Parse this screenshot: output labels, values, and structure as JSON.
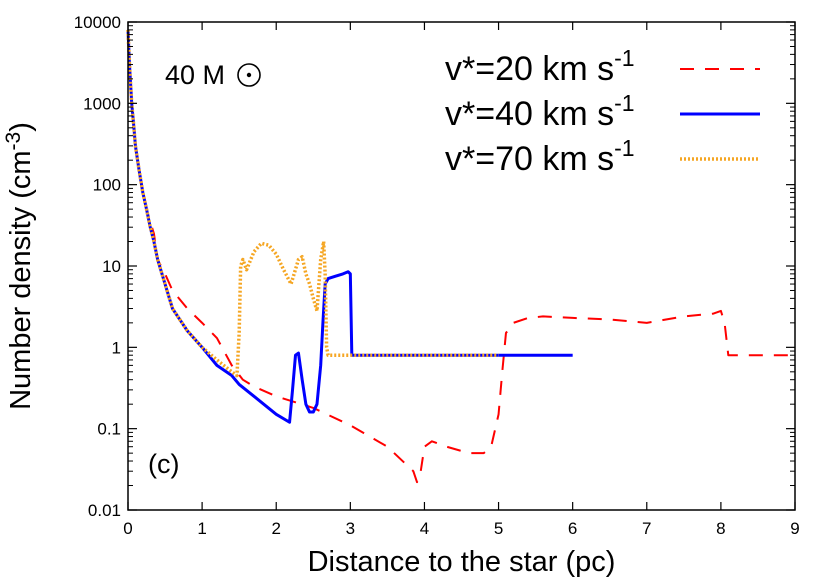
{
  "chart_data": {
    "type": "line",
    "xlabel": "Distance to the star (pc)",
    "ylabel": "Number density  (cm",
    "ylabel_sup": "-3",
    "ylabel_close": ")",
    "xlim": [
      0,
      9
    ],
    "ylim": [
      0.01,
      10000
    ],
    "yscale": "log",
    "x_ticks": [
      0,
      1,
      2,
      3,
      4,
      5,
      6,
      7,
      8,
      9
    ],
    "x_tick_labels": [
      "0",
      "1",
      "2",
      "3",
      "4",
      "5",
      "6",
      "7",
      "8",
      "9"
    ],
    "y_ticks": [
      0.01,
      0.1,
      1,
      10,
      100,
      1000,
      10000
    ],
    "y_tick_labels": [
      "0.01",
      "0.1",
      "1",
      "10",
      "100",
      "1000",
      "10000"
    ],
    "grid": false,
    "legend_position": "top-right",
    "annotations": {
      "mass_label": "40 M",
      "panel_label": "(c)"
    },
    "series": [
      {
        "name": "v*=20 km s",
        "name_sup": "-1",
        "color": "#ff0000",
        "style": "dashed",
        "x": [
          0.0,
          0.02,
          0.05,
          0.08,
          0.1,
          0.15,
          0.2,
          0.25,
          0.3,
          0.35,
          0.4,
          0.5,
          0.6,
          0.8,
          1.0,
          1.2,
          1.4,
          1.55,
          1.7,
          2.0,
          2.5,
          3.0,
          3.5,
          3.85,
          3.9,
          3.95,
          4.0,
          4.1,
          4.3,
          4.6,
          4.8,
          4.9,
          5.0,
          5.05,
          5.1,
          5.2,
          5.4,
          5.6,
          6.0,
          6.5,
          7.0,
          7.5,
          7.9,
          8.0,
          8.05,
          8.1,
          8.5,
          9.0
        ],
        "y": [
          8000,
          3000,
          1000,
          500,
          300,
          150,
          80,
          50,
          35,
          25,
          12,
          8,
          5,
          3,
          2,
          1.3,
          0.6,
          0.4,
          0.33,
          0.25,
          0.18,
          0.11,
          0.06,
          0.03,
          0.022,
          0.03,
          0.06,
          0.07,
          0.06,
          0.05,
          0.05,
          0.06,
          0.15,
          0.5,
          1.5,
          2.0,
          2.3,
          2.4,
          2.3,
          2.2,
          2.0,
          2.4,
          2.6,
          2.8,
          2.0,
          0.8,
          0.8,
          0.8
        ]
      },
      {
        "name": "v*=40 km s",
        "name_sup": "-1",
        "color": "#0000ff",
        "style": "solid",
        "x": [
          0.0,
          0.02,
          0.05,
          0.08,
          0.1,
          0.15,
          0.2,
          0.25,
          0.3,
          0.35,
          0.4,
          0.5,
          0.6,
          0.8,
          1.0,
          1.2,
          1.4,
          1.5,
          1.7,
          2.0,
          2.18,
          2.22,
          2.26,
          2.3,
          2.35,
          2.4,
          2.45,
          2.5,
          2.55,
          2.6,
          2.63,
          2.66,
          2.7,
          2.8,
          2.9,
          2.97,
          3.0,
          3.02,
          3.05,
          3.5,
          4.0,
          5.0,
          6.0
        ],
        "y": [
          8000,
          3000,
          1000,
          500,
          300,
          150,
          80,
          50,
          30,
          20,
          12,
          6,
          3,
          1.6,
          1.0,
          0.6,
          0.45,
          0.35,
          0.25,
          0.15,
          0.12,
          0.3,
          0.8,
          0.85,
          0.4,
          0.2,
          0.16,
          0.16,
          0.2,
          0.6,
          2.0,
          6.0,
          7.0,
          7.5,
          8.0,
          8.5,
          8.0,
          0.8,
          0.8,
          0.8,
          0.8,
          0.8,
          0.8
        ]
      },
      {
        "name": "v*=70 km s",
        "name_sup": "-1",
        "color": "#f5a623",
        "style": "dotted",
        "x": [
          0.0,
          0.02,
          0.05,
          0.08,
          0.1,
          0.15,
          0.2,
          0.25,
          0.3,
          0.35,
          0.4,
          0.5,
          0.6,
          0.8,
          1.0,
          1.2,
          1.4,
          1.47,
          1.5,
          1.52,
          1.55,
          1.6,
          1.7,
          1.8,
          1.9,
          2.0,
          2.1,
          2.2,
          2.3,
          2.35,
          2.4,
          2.45,
          2.5,
          2.55,
          2.6,
          2.64,
          2.66,
          2.68,
          2.7,
          2.75,
          3.0,
          4.0,
          5.0
        ],
        "y": [
          8000,
          3000,
          1000,
          500,
          300,
          150,
          80,
          50,
          30,
          20,
          12,
          6,
          3,
          1.6,
          1.0,
          0.7,
          0.5,
          0.45,
          1.5,
          10,
          12,
          9,
          15,
          19,
          18,
          14,
          9,
          6,
          12,
          13,
          8,
          6,
          4,
          2.8,
          12,
          20,
          8,
          1.0,
          0.8,
          0.8,
          0.8,
          0.8,
          0.8
        ]
      }
    ]
  }
}
